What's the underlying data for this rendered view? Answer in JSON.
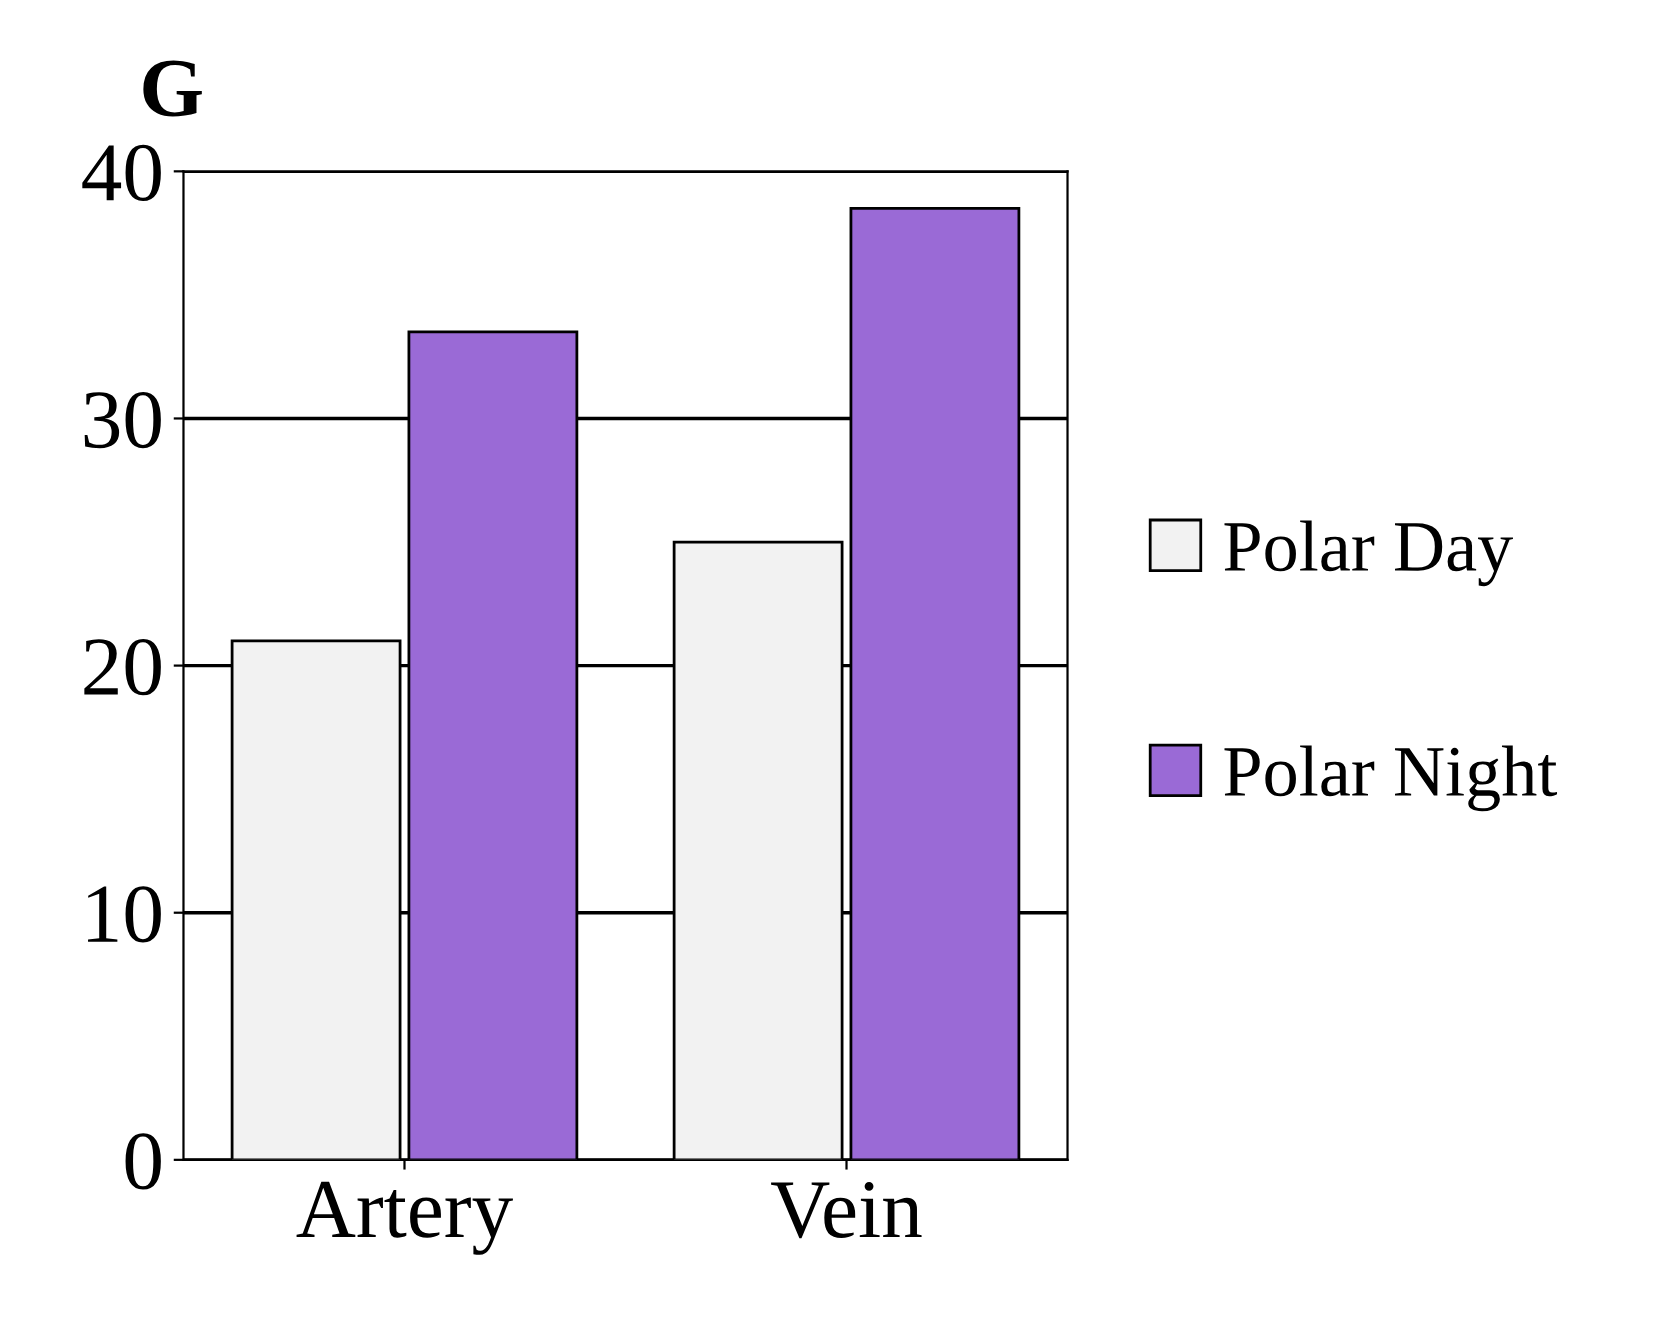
{
  "chart_data": {
    "type": "bar",
    "title": "G",
    "categories": [
      "Artery",
      "Vein"
    ],
    "series": [
      {
        "name": "Polar Day",
        "color": "#f2f2f2",
        "values": [
          21,
          25
        ]
      },
      {
        "name": "Polar Night",
        "color": "#9a6ad6",
        "values": [
          33.5,
          38.5
        ]
      }
    ],
    "ylim": [
      0,
      40
    ],
    "yticks": [
      0,
      10,
      20,
      30,
      40
    ],
    "grid": "y",
    "legend": "right"
  }
}
